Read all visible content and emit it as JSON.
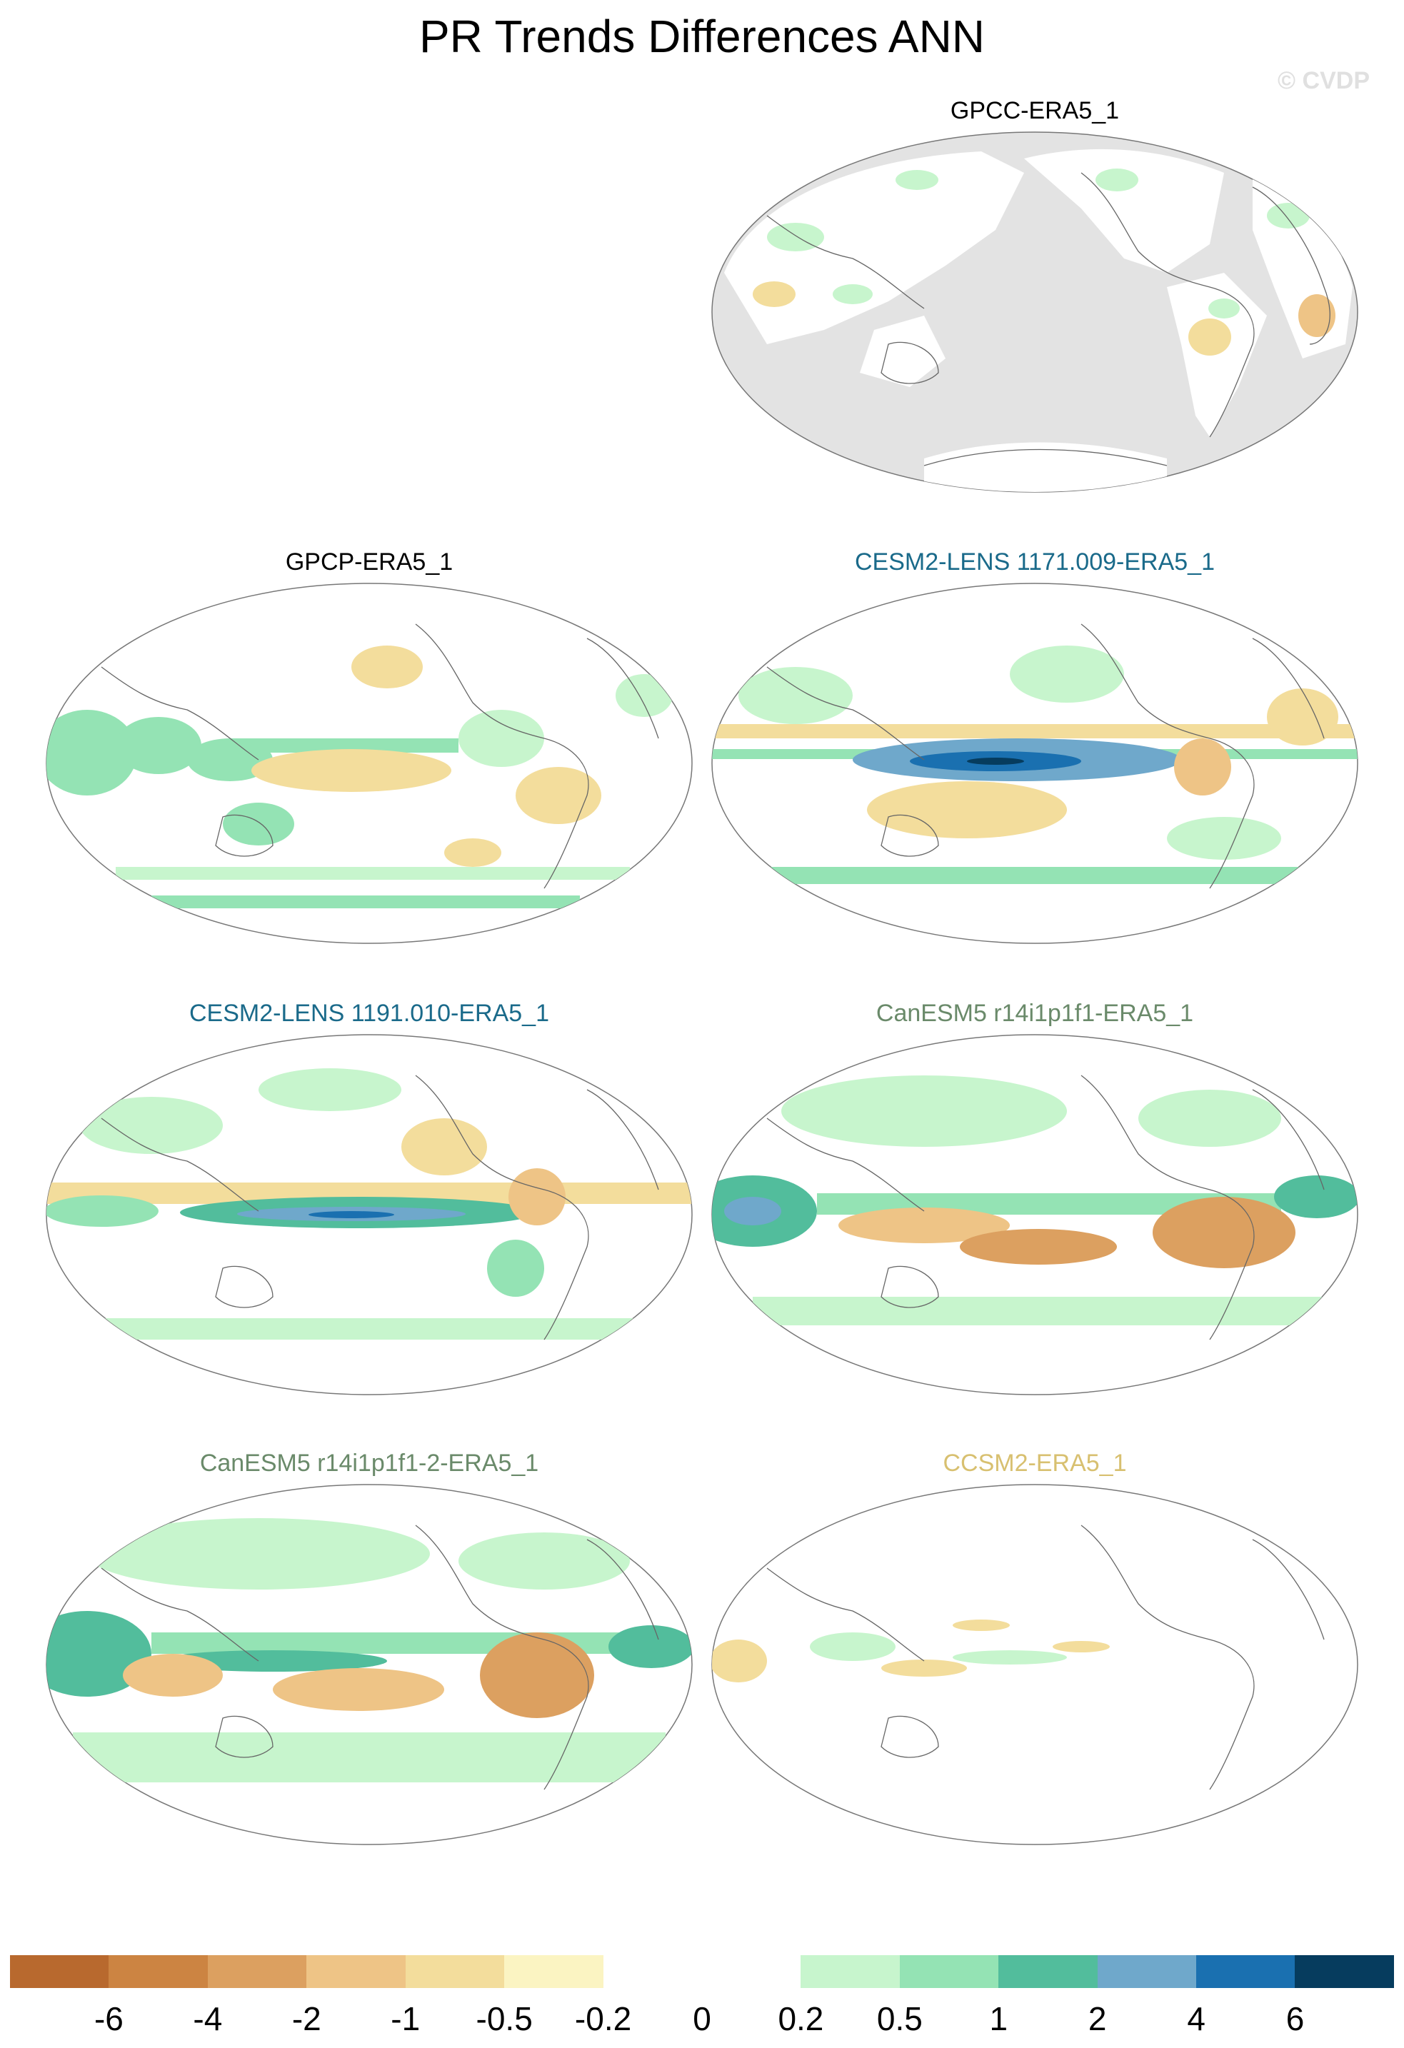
{
  "figure": {
    "title": "PR Trends Differences ANN",
    "watermark": "© CVDP"
  },
  "panels": [
    {
      "label": "GPCC-ERA5_1",
      "label_color": "#000000",
      "land_only": true
    },
    {
      "label": "GPCP-ERA5_1",
      "label_color": "#000000",
      "land_only": false
    },
    {
      "label": "CESM2-LENS 1171.009-ERA5_1",
      "label_color": "#1a6a8a",
      "land_only": false
    },
    {
      "label": "CESM2-LENS 1191.010-ERA5_1",
      "label_color": "#1a6a8a",
      "land_only": false
    },
    {
      "label": "CanESM5 r14i1p1f1-ERA5_1",
      "label_color": "#6a8a6a",
      "land_only": false
    },
    {
      "label": "CanESM5 r14i1p1f1-2-ERA5_1",
      "label_color": "#6a8a6a",
      "land_only": false
    },
    {
      "label": "CCSM2-ERA5_1",
      "label_color": "#d8c070",
      "land_only": false
    }
  ],
  "colorbar": {
    "colors": [
      "#b8692e",
      "#cc8442",
      "#dca060",
      "#eec486",
      "#f3dd9c",
      "#fbf4c2",
      "#ffffff",
      "#ffffff",
      "#c7f5cd",
      "#94e3b4",
      "#52bd9c",
      "#6fa8cb",
      "#1a70b0",
      "#063c5e"
    ],
    "tick_labels": [
      "-6",
      "-4",
      "-2",
      "-1",
      "-0.5",
      "-0.2",
      "0",
      "0.2",
      "0.5",
      "1",
      "2",
      "4",
      "6"
    ]
  }
}
